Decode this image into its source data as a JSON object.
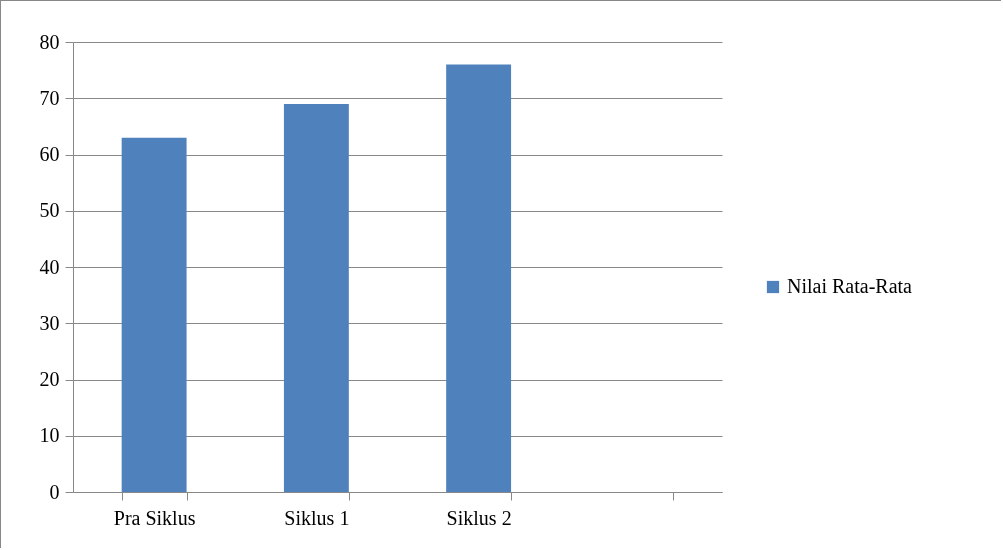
{
  "chart_data": {
    "type": "bar",
    "categories": [
      "Pra Siklus",
      "Siklus 1",
      "Siklus 2",
      null
    ],
    "series": [
      {
        "name": "Nilai Rata-Rata",
        "color": "#4f81bd",
        "values": [
          63,
          69,
          76,
          null
        ]
      }
    ],
    "ylim": [
      0,
      80
    ],
    "yticks": [
      0,
      10,
      20,
      30,
      40,
      50,
      60,
      70,
      80
    ],
    "grid": "y",
    "legend": "right"
  }
}
